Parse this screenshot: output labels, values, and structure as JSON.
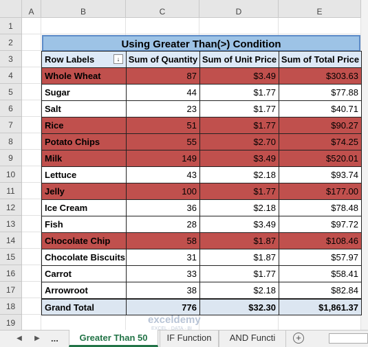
{
  "columns": [
    "A",
    "B",
    "C",
    "D",
    "E"
  ],
  "row_numbers": [
    1,
    2,
    3,
    4,
    5,
    6,
    7,
    8,
    9,
    10,
    11,
    12,
    13,
    14,
    15,
    16,
    17,
    18,
    19
  ],
  "table": {
    "title": "Using Greater Than(>) Condition",
    "headers": [
      "Row Labels",
      "Sum of Quantity",
      "Sum of Unit Price",
      "Sum of Total Price"
    ],
    "rows": [
      [
        "Whole Wheat",
        "87",
        "$3.49",
        "$303.63"
      ],
      [
        "Sugar",
        "44",
        "$1.77",
        "$77.88"
      ],
      [
        "Salt",
        "23",
        "$1.77",
        "$40.71"
      ],
      [
        "Rice",
        "51",
        "$1.77",
        "$90.27"
      ],
      [
        "Potato Chips",
        "55",
        "$2.70",
        "$74.25"
      ],
      [
        "Milk",
        "149",
        "$3.49",
        "$520.01"
      ],
      [
        "Lettuce",
        "43",
        "$2.18",
        "$93.74"
      ],
      [
        "Jelly",
        "100",
        "$1.77",
        "$177.00"
      ],
      [
        "Ice Cream",
        "36",
        "$2.18",
        "$78.48"
      ],
      [
        "Fish",
        "28",
        "$3.49",
        "$97.72"
      ],
      [
        "Chocolate Chip",
        "58",
        "$1.87",
        "$108.46"
      ],
      [
        "Chocolate Biscuits",
        "31",
        "$1.87",
        "$57.97"
      ],
      [
        "Carrot",
        "33",
        "$1.77",
        "$58.41"
      ],
      [
        "Arrowroot",
        "38",
        "$2.18",
        "$82.84"
      ]
    ],
    "highlighted": [
      true,
      false,
      false,
      true,
      true,
      true,
      false,
      true,
      false,
      false,
      true,
      false,
      false,
      false
    ],
    "highlight_color": "#c0504d",
    "total": [
      "Grand Total",
      "776",
      "$32.30",
      "$1,861.37"
    ]
  },
  "watermark": {
    "name": "exceldemy",
    "tagline": "EXCEL · DATA · BI"
  },
  "tabs": {
    "more": "...",
    "items": [
      "Greater Than 50",
      "IF Function",
      "AND Functi"
    ],
    "active": 0
  }
}
